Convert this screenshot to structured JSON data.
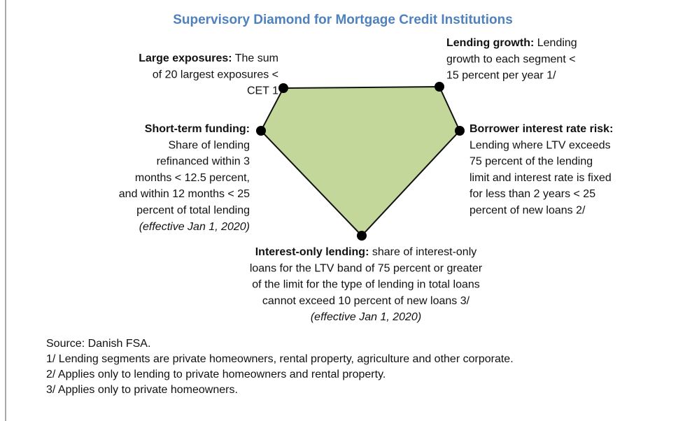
{
  "title": "Supervisory Diamond for Mortgage Credit Institutions",
  "nodes": [
    {
      "label": "Large exposures:",
      "label_rest": " The sum",
      "lines": [
        "of 20 largest exposures <",
        "CET 1"
      ]
    },
    {
      "label": "Lending growth:",
      "label_rest": " Lending",
      "lines": [
        "growth to each segment <",
        "15 percent per year 1/"
      ]
    },
    {
      "label": "Short-term funding:",
      "lines": [
        "Share of lending",
        "refinanced within 3",
        "months < 12.5 percent,",
        "and within 12 months < 25",
        "percent of total lending"
      ],
      "note": "(effective Jan 1, 2020)"
    },
    {
      "label": "Borrower interest rate risk:",
      "lines": [
        "Lending where LTV exceeds",
        "75 percent of the lending",
        "limit and interest rate is fixed",
        "for less than 2 years < 25",
        "percent of new loans 2/"
      ]
    },
    {
      "label": "Interest-only lending:",
      "label_rest": " share of interest-only",
      "lines": [
        "loans for the LTV band of 75 percent or greater",
        "of the limit for the type of lending in total loans",
        "cannot exceed 10 percent of new loans 3/"
      ],
      "note": "(effective Jan 1, 2020)"
    }
  ],
  "footnotes": [
    "Source: Danish FSA.",
    "1/ Lending segments are private homeowners, rental property, agriculture and other corporate.",
    "2/ Applies only to lending to private homeowners and rental property.",
    "3/ Applies only to private homeowners."
  ]
}
